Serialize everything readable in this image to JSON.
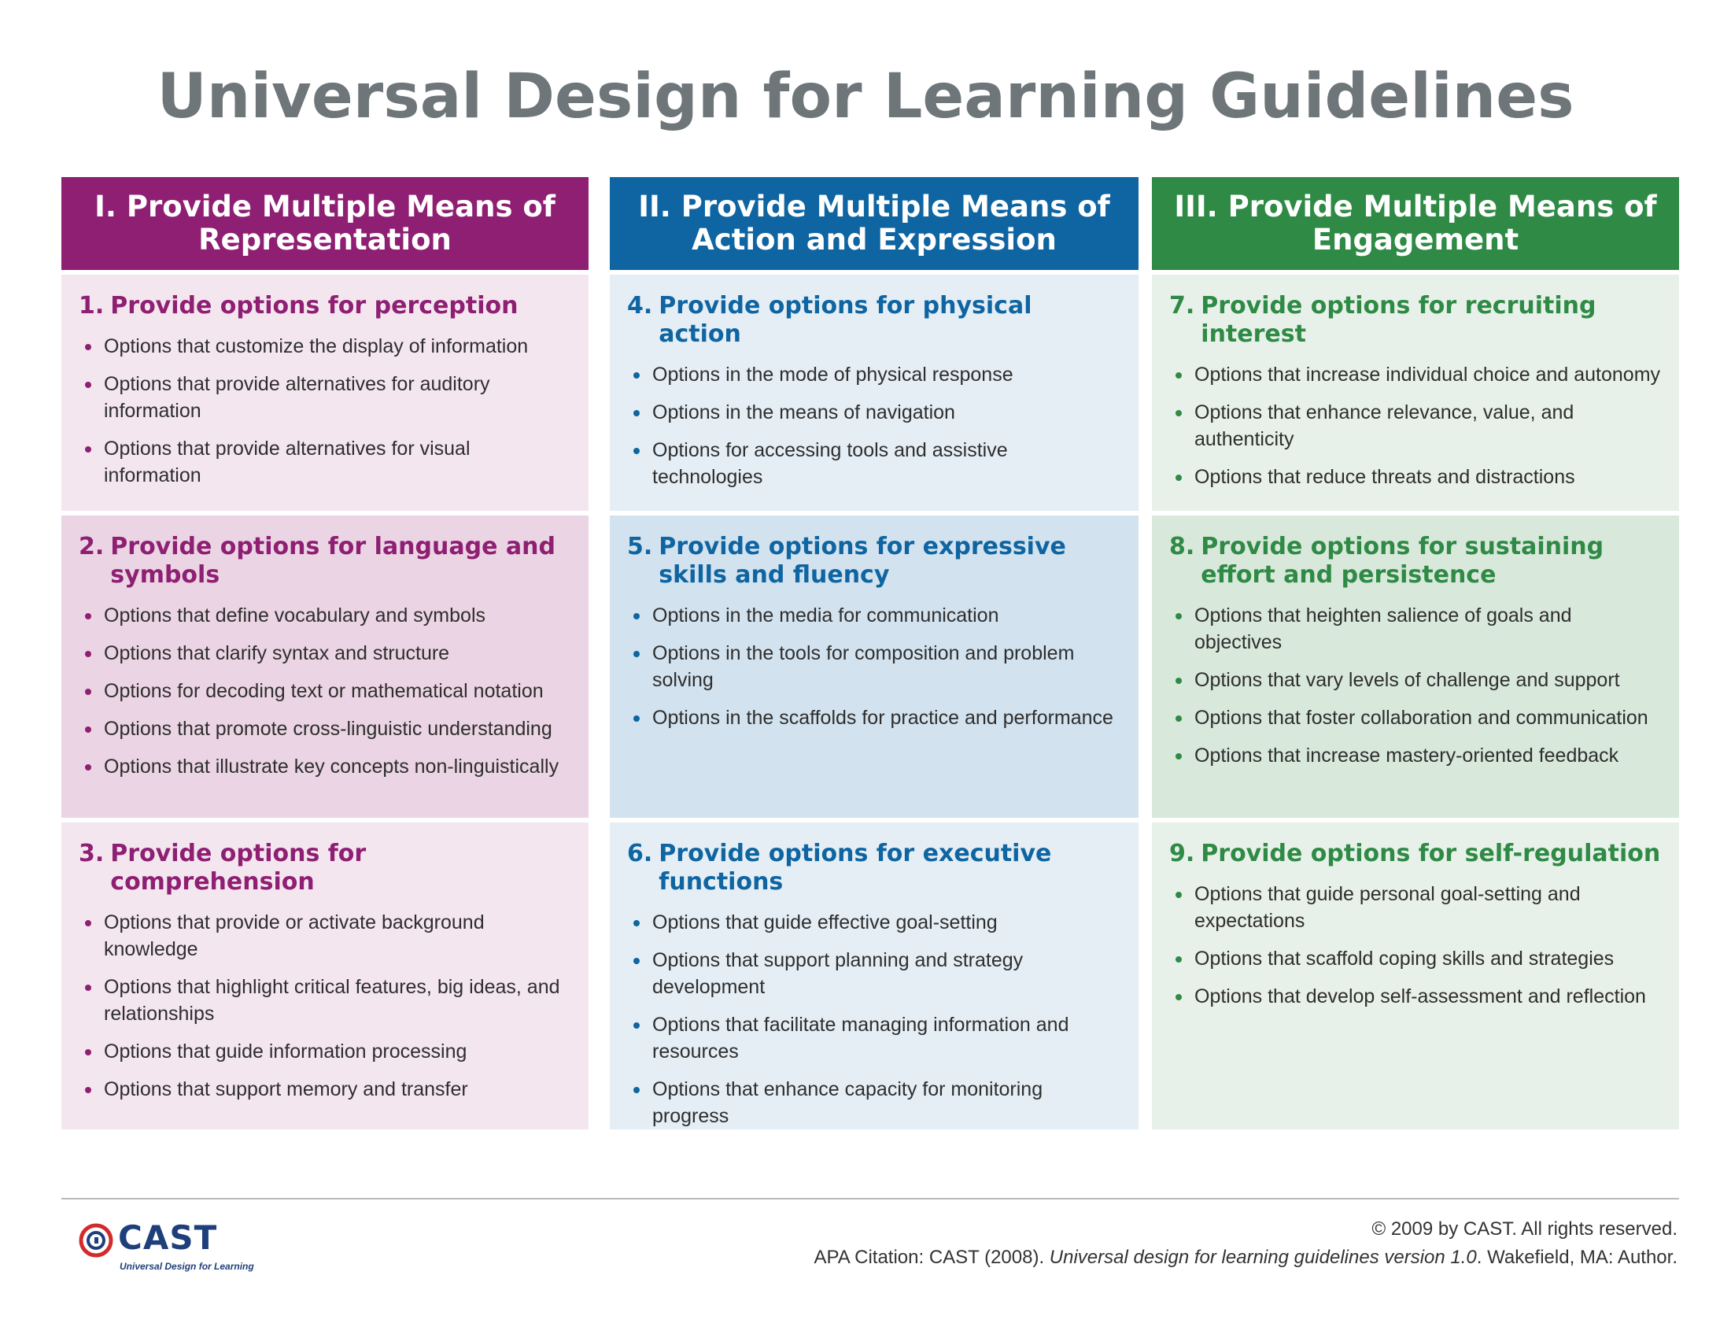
{
  "title": "Universal Design for Learning Guidelines",
  "columns": [
    {
      "header": [
        "I. Provide Multiple Means of",
        "Representation"
      ],
      "color": "#8e1f73",
      "cells": [
        {
          "num": "1.",
          "title": "Provide options for perception",
          "items": [
            "Options that customize the display of information",
            "Options that provide alternatives for auditory information",
            "Options that provide alternatives for visual information"
          ]
        },
        {
          "num": "2.",
          "title": "Provide options for language and symbols",
          "items": [
            "Options that define vocabulary and symbols",
            "Options that clarify syntax and structure",
            "Options for decoding text or mathematical notation",
            "Options that promote cross-linguistic understanding",
            "Options that illustrate key concepts non-linguistically"
          ]
        },
        {
          "num": "3.",
          "title": "Provide options for comprehension",
          "items": [
            "Options that provide or activate background knowledge",
            "Options that highlight critical features, big ideas, and relationships",
            "Options that guide information processing",
            "Options that support memory and transfer"
          ]
        }
      ]
    },
    {
      "header": [
        "II. Provide Multiple Means of",
        "Action and Expression"
      ],
      "color": "#0f65a1",
      "cells": [
        {
          "num": "4.",
          "title": "Provide options for physical action",
          "items": [
            "Options in the mode of physical response",
            "Options in the means of navigation",
            "Options for accessing tools and assistive technologies"
          ]
        },
        {
          "num": "5.",
          "title": "Provide options for expressive skills and fluency",
          "items": [
            "Options in the media for communication",
            "Options in the tools for composition and problem solving",
            "Options in the scaffolds for practice and performance"
          ]
        },
        {
          "num": "6.",
          "title": "Provide options for executive functions",
          "items": [
            "Options that guide effective goal-setting",
            "Options that support planning and strategy development",
            "Options that facilitate managing information and resources",
            "Options that enhance capacity for monitoring progress"
          ]
        }
      ]
    },
    {
      "header": [
        "III. Provide Multiple Means of",
        "Engagement"
      ],
      "color": "#2f8a46",
      "cells": [
        {
          "num": "7.",
          "title": "Provide options for recruiting interest",
          "items": [
            "Options that increase individual choice and autonomy",
            "Options that enhance relevance, value, and authenticity",
            "Options that reduce threats and distractions"
          ]
        },
        {
          "num": "8.",
          "title": "Provide options for sustaining effort and persistence",
          "items": [
            "Options that heighten salience of goals and objectives",
            "Options that vary levels of challenge and support",
            "Options that foster collaboration and communication",
            "Options that increase mastery-oriented feedback"
          ]
        },
        {
          "num": "9.",
          "title": "Provide options for self-regulation",
          "items": [
            "Options that guide personal goal-setting and expectations",
            "Options that scaffold coping skills and strategies",
            "Options that develop self-assessment and reflection"
          ]
        }
      ]
    }
  ],
  "footer": {
    "logo_word": "CAST",
    "logo_tagline": "Universal Design for Learning",
    "copyright": "© 2009 by CAST. All rights reserved.",
    "citation_prefix": "APA Citation: CAST (2008). ",
    "citation_title": "Universal design for learning guidelines version 1.0",
    "citation_suffix": ". Wakefield, MA: Author."
  }
}
